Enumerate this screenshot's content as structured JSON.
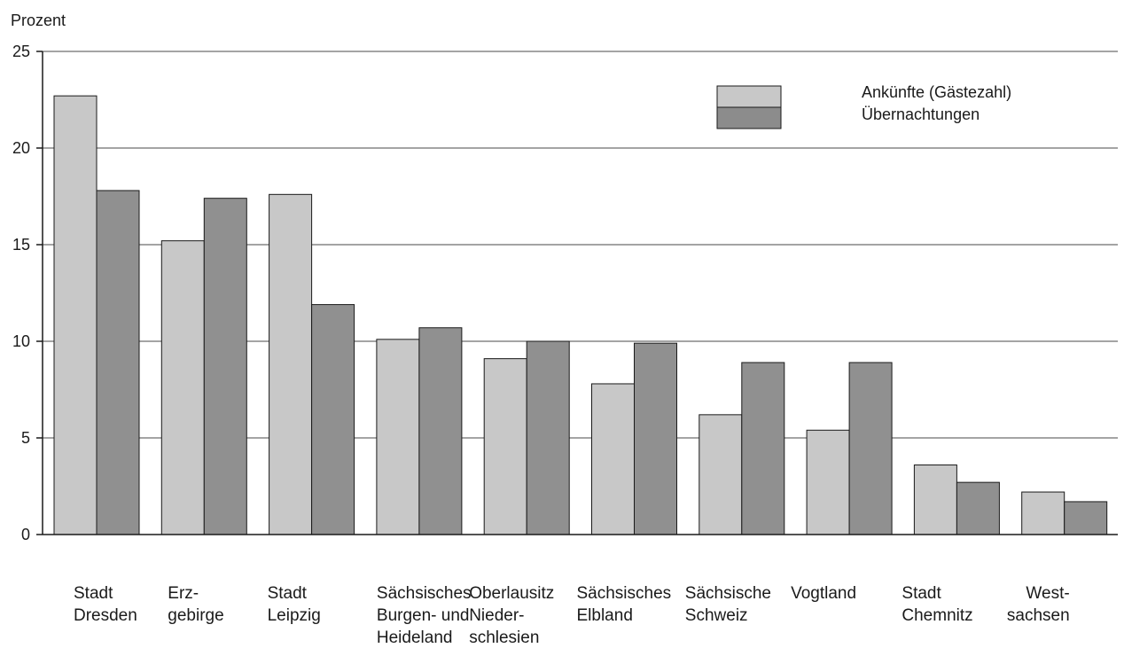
{
  "chart_data": {
    "type": "bar",
    "title": "",
    "ylabel": "Prozent",
    "xlabel": "",
    "ylim": [
      0,
      25
    ],
    "yticks": [
      0,
      5,
      10,
      15,
      20,
      25
    ],
    "grid": true,
    "legend_position": "top-right",
    "categories": [
      [
        "Stadt",
        "Dresden"
      ],
      [
        "Erz-",
        "gebirge"
      ],
      [
        "Stadt",
        "Leipzig"
      ],
      [
        "Sächsisches",
        "Burgen- und",
        "Heideland"
      ],
      [
        "Oberlausitz",
        "Nieder-",
        "schlesien"
      ],
      [
        "Sächsisches",
        "Elbland"
      ],
      [
        "Sächsische",
        "Schweiz"
      ],
      [
        "Vogtland"
      ],
      [
        "Stadt",
        "Chemnitz"
      ],
      [
        "West-",
        "sachsen"
      ]
    ],
    "series": [
      {
        "name": "Ankünfte (Gästezahl)",
        "color": "#c8c8c8",
        "values": [
          22.7,
          15.2,
          17.6,
          10.1,
          9.1,
          7.8,
          6.2,
          5.4,
          3.6,
          2.2
        ]
      },
      {
        "name": "Übernachtungen",
        "color": "#909090",
        "values": [
          17.8,
          17.4,
          11.9,
          10.7,
          10.0,
          9.9,
          8.9,
          8.9,
          2.7,
          1.7
        ]
      }
    ]
  }
}
